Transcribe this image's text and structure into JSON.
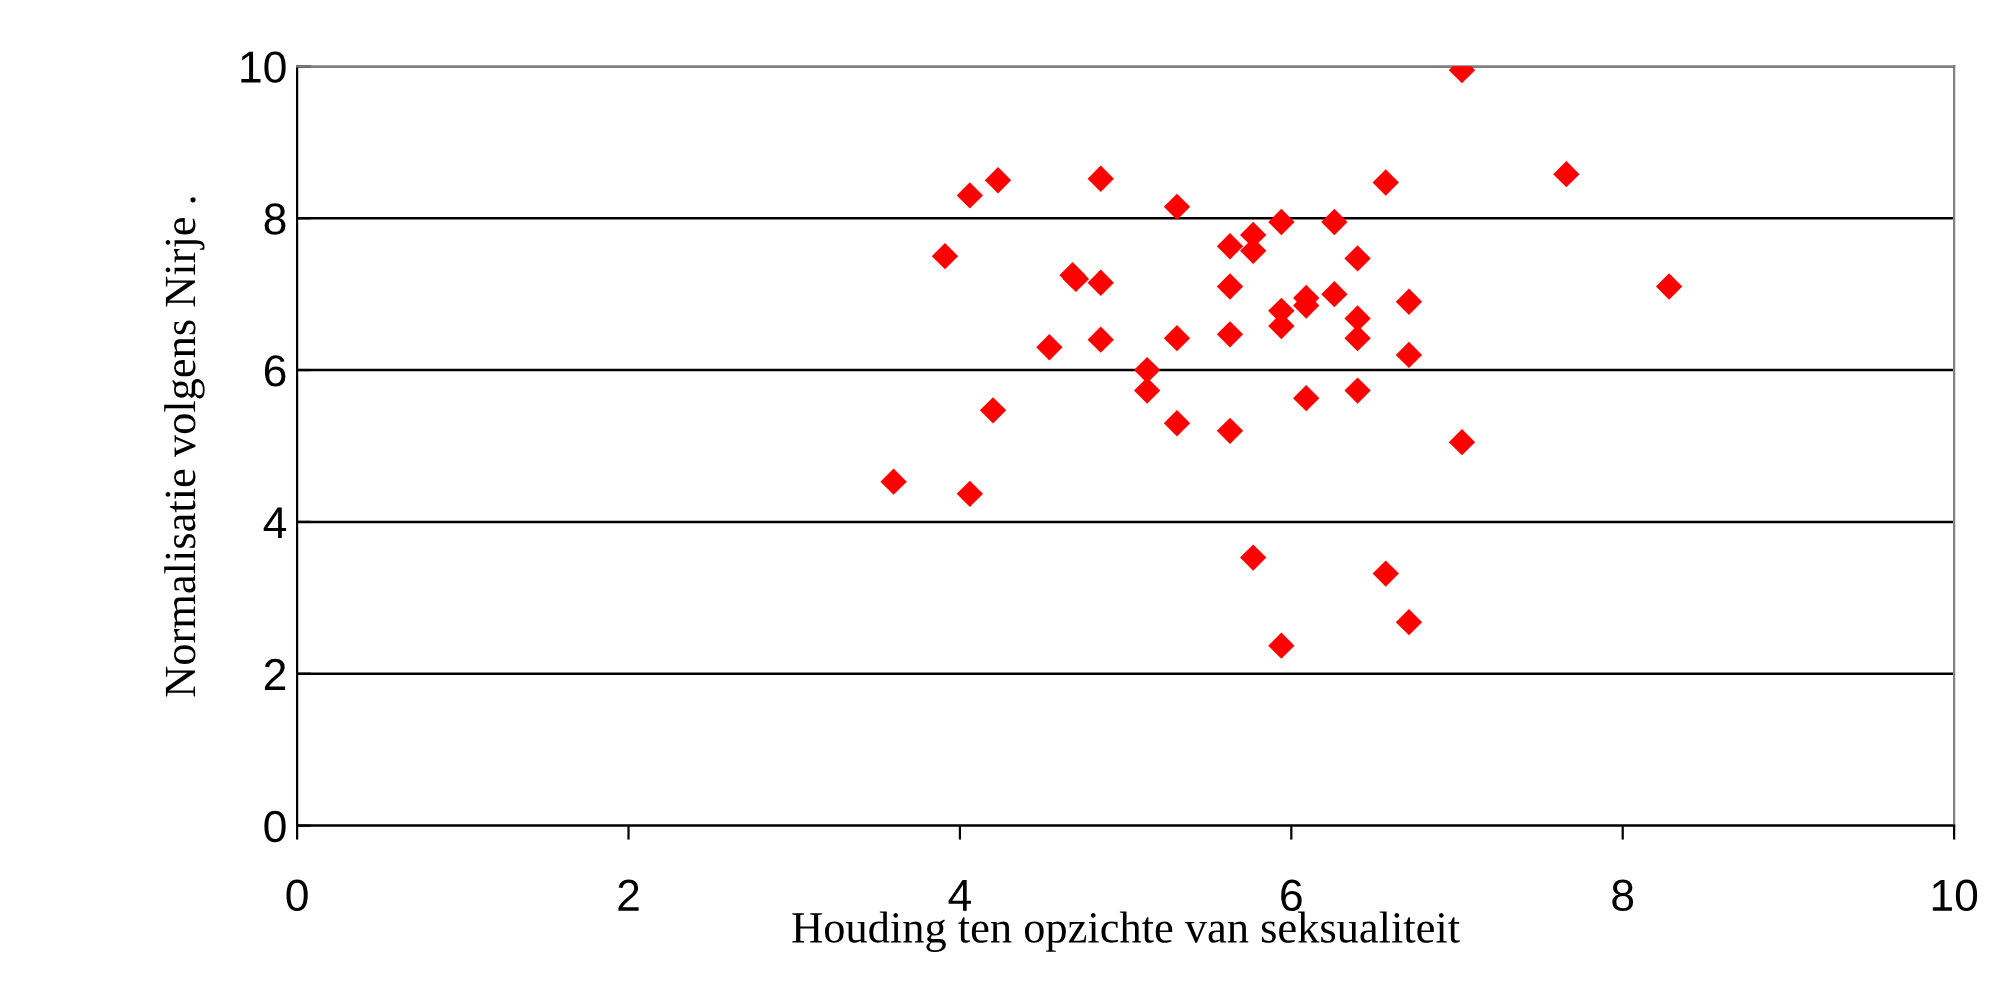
{
  "chart_data": {
    "type": "scatter",
    "xlabel": "Houding ten opzichte van seksualiteit",
    "ylabel": "Normalisatie volgens Nirje .",
    "xlim": [
      0,
      10
    ],
    "ylim": [
      0,
      10
    ],
    "xticks": [
      0,
      2,
      4,
      6,
      8,
      10
    ],
    "yticks": [
      0,
      2,
      4,
      6,
      8,
      10
    ],
    "grid": "y",
    "marker": "diamond",
    "series": [
      {
        "color": "#ff0000",
        "x": [
          3.6,
          4.06,
          3.91,
          4.06,
          4.23,
          4.2,
          4.54,
          4.68,
          4.7,
          4.85,
          4.85,
          4.85,
          5.13,
          5.13,
          5.31,
          5.31,
          5.31,
          5.63,
          5.63,
          5.63,
          5.63,
          5.77,
          5.77,
          5.77,
          5.94,
          5.94,
          5.94,
          5.94,
          6.09,
          6.09,
          6.09,
          6.26,
          6.26,
          6.4,
          6.4,
          6.4,
          6.4,
          6.57,
          6.57,
          6.71,
          6.71,
          6.71,
          7.03,
          7.03,
          7.66,
          8.28
        ],
        "values": [
          4.53,
          4.37,
          7.5,
          8.3,
          8.5,
          5.47,
          6.3,
          7.25,
          7.2,
          7.15,
          8.52,
          6.4,
          6.0,
          5.73,
          8.15,
          6.42,
          5.3,
          7.63,
          7.1,
          6.47,
          5.2,
          7.78,
          7.57,
          3.53,
          7.95,
          6.78,
          6.58,
          2.37,
          6.95,
          6.85,
          5.63,
          7.95,
          7.0,
          7.47,
          6.68,
          6.42,
          5.73,
          8.47,
          3.32,
          6.9,
          6.2,
          2.68,
          9.95,
          5.05,
          8.58,
          7.1
        ]
      }
    ]
  }
}
